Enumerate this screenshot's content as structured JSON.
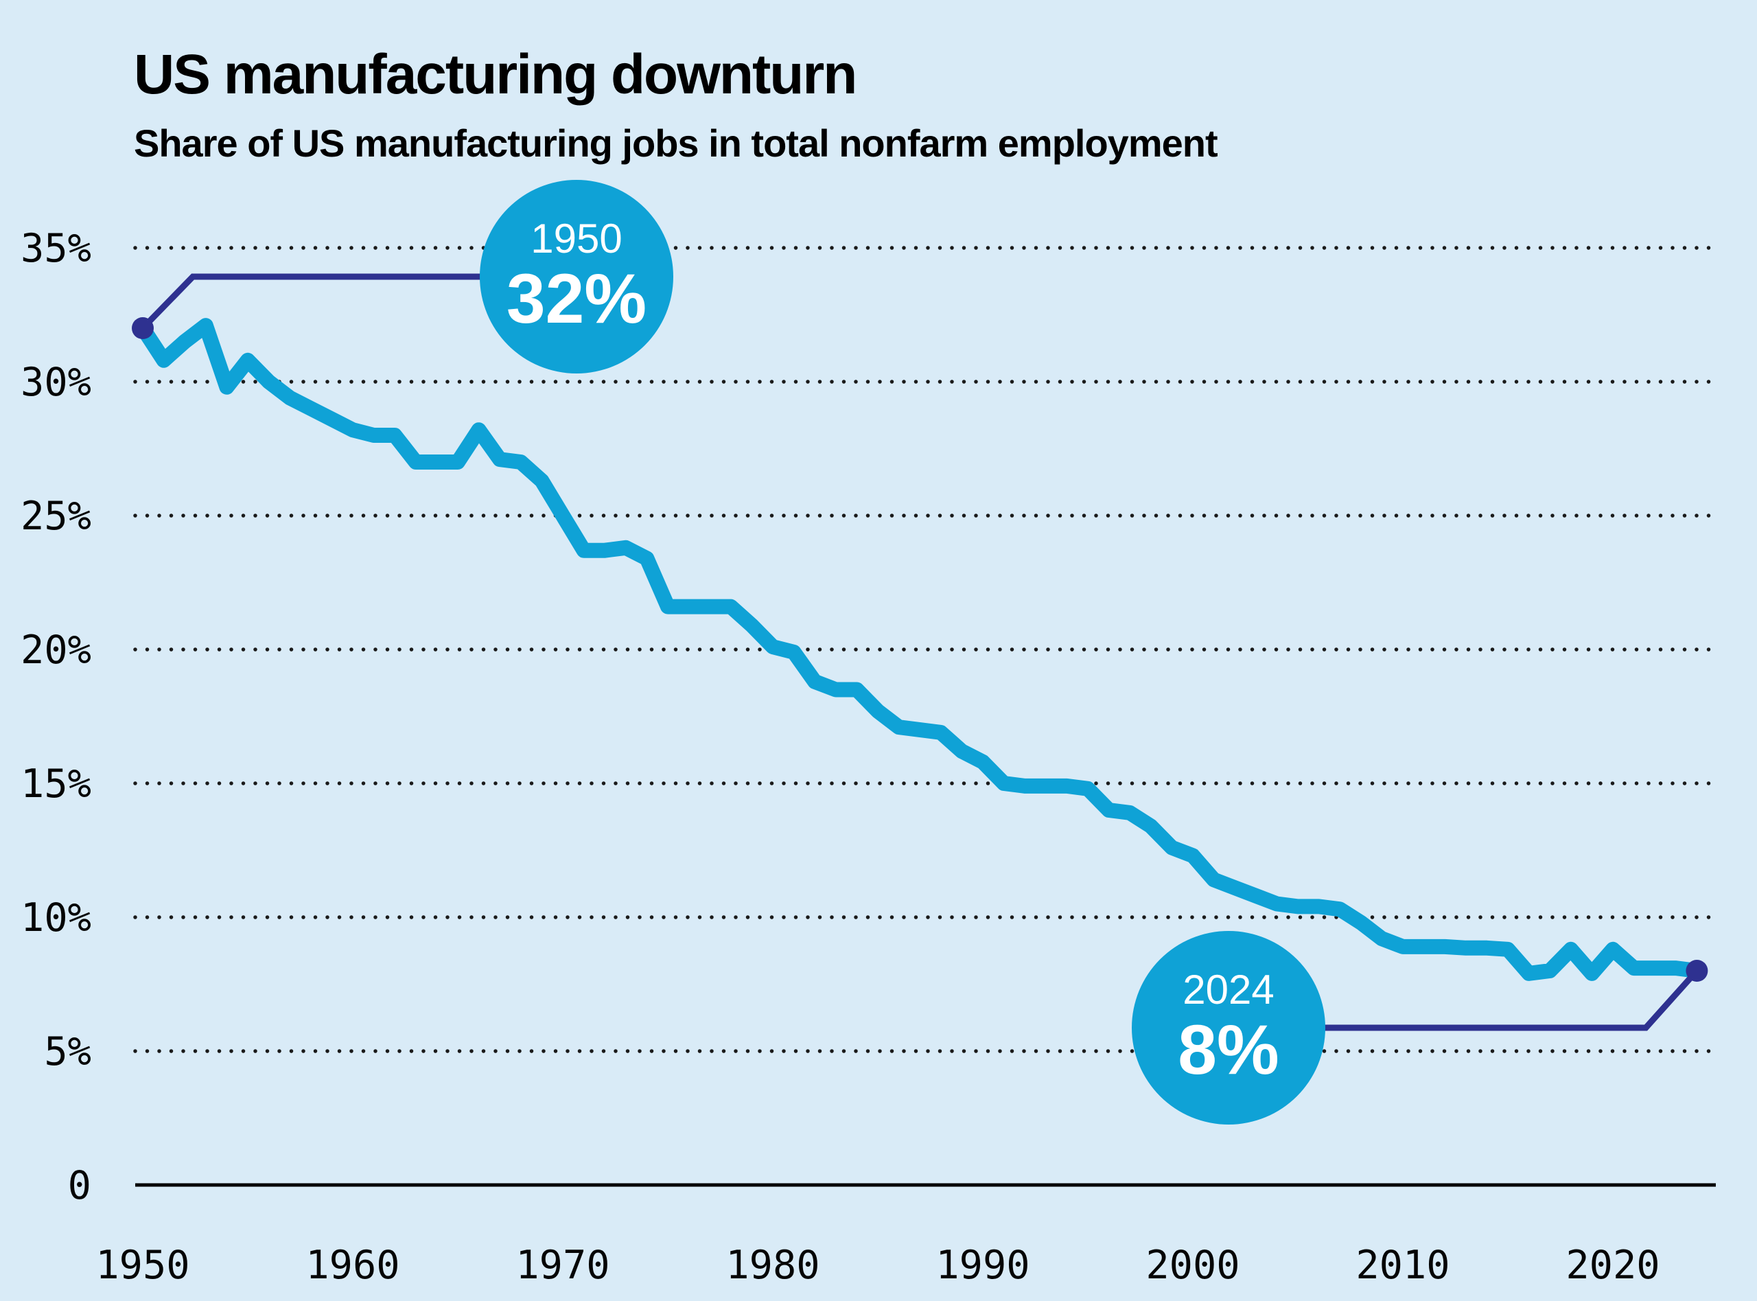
{
  "header": {
    "title": "US manufacturing downturn",
    "subtitle": "Share of US manufacturing jobs in total nonfarm employment"
  },
  "colors": {
    "background": "#d9ebf7",
    "series_line": "#0fa2d6",
    "callout": "#2e3190",
    "callout_text": "#ffffff",
    "grid_dots": "#1a1a1a",
    "axis_line": "#000000",
    "tick_text": "#050505"
  },
  "chart_data": {
    "type": "line",
    "title": "US manufacturing downturn",
    "subtitle": "Share of US manufacturing jobs in total nonfarm employment",
    "xlabel": "",
    "ylabel": "",
    "xlim": [
      1950,
      2025
    ],
    "ylim": [
      0,
      36.5
    ],
    "grid": "horizontal-dotted",
    "legend": "none",
    "x_ticks": [
      1950,
      1960,
      1970,
      1980,
      1990,
      2000,
      2010,
      2020
    ],
    "y_ticks": [
      {
        "value": 35,
        "label": "35%",
        "style": "dotted"
      },
      {
        "value": 30,
        "label": "30%",
        "style": "dotted"
      },
      {
        "value": 25,
        "label": "25%",
        "style": "dotted"
      },
      {
        "value": 20,
        "label": "20%",
        "style": "dotted"
      },
      {
        "value": 15,
        "label": "15%",
        "style": "dotted"
      },
      {
        "value": 10,
        "label": "10%",
        "style": "dotted"
      },
      {
        "value": 5,
        "label": "5%",
        "style": "dotted"
      },
      {
        "value": 0,
        "label": "0",
        "style": "solid-axis"
      }
    ],
    "x": [
      1950,
      1951,
      1952,
      1953,
      1954,
      1955,
      1956,
      1957,
      1958,
      1959,
      1960,
      1961,
      1962,
      1963,
      1964,
      1965,
      1966,
      1967,
      1968,
      1969,
      1970,
      1971,
      1972,
      1973,
      1974,
      1975,
      1976,
      1977,
      1978,
      1979,
      1980,
      1981,
      1982,
      1983,
      1984,
      1985,
      1986,
      1987,
      1988,
      1989,
      1990,
      1991,
      1992,
      1993,
      1994,
      1995,
      1996,
      1997,
      1998,
      1999,
      2000,
      2001,
      2002,
      2003,
      2004,
      2005,
      2006,
      2007,
      2008,
      2009,
      2010,
      2011,
      2012,
      2013,
      2014,
      2015,
      2016,
      2017,
      2018,
      2019,
      2020,
      2021,
      2022,
      2023,
      2024
    ],
    "values": [
      32.0,
      30.8,
      31.5,
      32.1,
      29.8,
      30.8,
      30.0,
      29.4,
      29.0,
      28.6,
      28.2,
      28.0,
      28.0,
      27.0,
      27.0,
      27.0,
      28.2,
      27.1,
      27.0,
      26.3,
      25.0,
      23.7,
      23.7,
      23.8,
      23.4,
      21.6,
      21.6,
      21.6,
      21.6,
      20.9,
      20.1,
      19.9,
      18.8,
      18.5,
      18.5,
      17.7,
      17.1,
      17.0,
      16.9,
      16.2,
      15.8,
      15.0,
      14.9,
      14.9,
      14.9,
      14.8,
      14.0,
      13.9,
      13.4,
      12.6,
      12.3,
      11.4,
      11.1,
      10.8,
      10.5,
      10.4,
      10.4,
      10.3,
      9.8,
      9.2,
      8.9,
      8.9,
      8.9,
      8.85,
      8.85,
      8.8,
      7.9,
      8.0,
      8.8,
      7.9,
      8.8,
      8.1,
      8.1,
      8.1,
      8.0
    ],
    "annotations": [
      {
        "year": 1950,
        "value": 32,
        "year_label": "1950",
        "value_label": "32%",
        "marker": "dot",
        "callout": "circle-above-right"
      },
      {
        "year": 2024,
        "value": 8,
        "year_label": "2024",
        "value_label": "8%",
        "marker": "dot",
        "callout": "circle-below-left"
      }
    ]
  }
}
